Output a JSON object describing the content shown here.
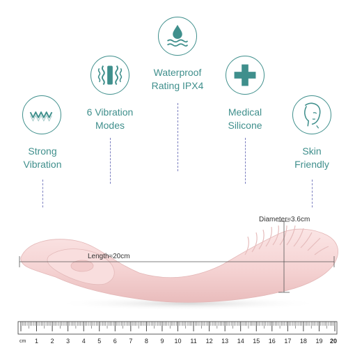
{
  "features": [
    {
      "id": "strong-vibration",
      "label_line1": "Strong",
      "label_line2": "Vibration",
      "icon": "wave-icon"
    },
    {
      "id": "vibration-modes",
      "label_line1": "6 Vibration",
      "label_line2": "Modes",
      "icon": "vibration-icon"
    },
    {
      "id": "waterproof",
      "label_line1": "Waterproof",
      "label_line2": "Rating IPX4",
      "icon": "water-drop-icon"
    },
    {
      "id": "medical-silicone",
      "label_line1": "Medical",
      "label_line2": "Silicone",
      "icon": "plus-icon"
    },
    {
      "id": "skin-friendly",
      "label_line1": "Skin",
      "label_line2": "Friendly",
      "icon": "face-icon"
    }
  ],
  "dimensions": {
    "length_label": "Length≈20cm",
    "diameter_label": "Diameter≈3.6cm"
  },
  "ruler": {
    "unit_label": "cm",
    "numbers": [
      "1",
      "2",
      "3",
      "4",
      "5",
      "6",
      "7",
      "8",
      "9",
      "10",
      "11",
      "12",
      "13",
      "14",
      "15",
      "16",
      "17",
      "18",
      "19",
      "20"
    ]
  },
  "colors": {
    "accent": "#3f8f8c",
    "dashed": "#7b7fc0",
    "product": "#f6d7d7"
  }
}
